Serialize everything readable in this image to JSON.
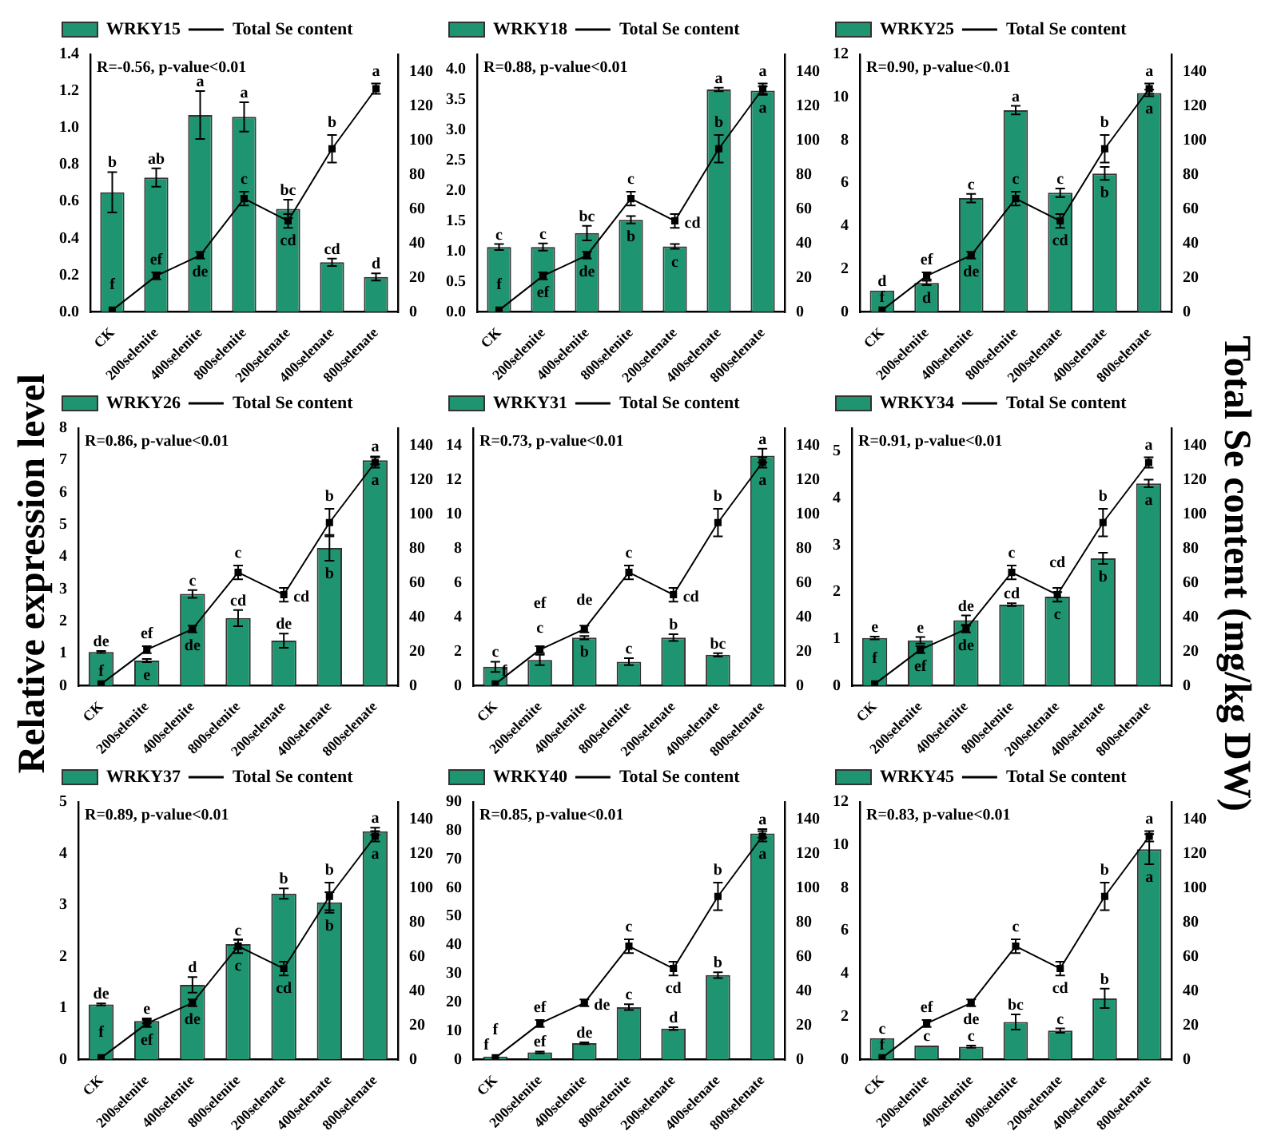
{
  "chart_data": [
    {
      "type": "bar",
      "categories": [
        "CK",
        "200selenite",
        "400selenite",
        "800selenite",
        "200selenate",
        "400selenate",
        "800selenate"
      ],
      "legend": "top left",
      "marker": "square",
      "annotations": [
        "R=-0.56, p-value<0.01"
      ],
      "series": [
        {
          "name": "WRKY15",
          "color": "#1f9470",
          "values": [
            0.65,
            0.73,
            1.07,
            1.06,
            0.56,
            0.27,
            0.19
          ],
          "errors": [
            0.11,
            0.05,
            0.13,
            0.08,
            0.05,
            0.02,
            0.02
          ],
          "value_labels": [
            "b",
            "ab",
            "a",
            "a",
            "bc",
            "cd",
            "d"
          ]
        },
        {
          "name": "Total Se content",
          "type": "line",
          "axis": "y2",
          "color": "#000000",
          "values": [
            1,
            21,
            33,
            66,
            53,
            95,
            130
          ],
          "errors": [
            null,
            2,
            2,
            4,
            4,
            8,
            3
          ],
          "value_labels": [
            "f",
            "ef",
            "de",
            "c",
            "cd",
            "b",
            "a"
          ]
        }
      ],
      "ylim": [
        0,
        1.4
      ],
      "yticks": [
        {
          "value": 0,
          "label": "0.0"
        },
        {
          "value": 0.2,
          "label": "0.2"
        },
        {
          "value": 0.4,
          "label": "0.4"
        },
        {
          "value": 0.6,
          "label": "0.6"
        },
        {
          "value": 0.8,
          "label": "0.8"
        },
        {
          "value": 1,
          "label": "1.0"
        },
        {
          "value": 1.2,
          "label": "1.2"
        },
        {
          "value": 1.4,
          "label": "1.4"
        }
      ],
      "y2lim": [
        0,
        150
      ],
      "y2ticks": [
        0,
        20,
        40,
        60,
        80,
        100,
        120,
        140
      ]
    },
    {
      "type": "bar",
      "categories": [
        "CK",
        "200selenite",
        "400selenite",
        "800selenite",
        "200selenate",
        "400selenate",
        "800selenate"
      ],
      "legend": "top left",
      "marker": "square",
      "annotations": [
        "R=0.88, p-value<0.01"
      ],
      "series": [
        {
          "name": "WRKY18",
          "color": "#1f9470",
          "values": [
            1.07,
            1.07,
            1.3,
            1.52,
            1.08,
            3.67,
            3.65
          ],
          "errors": [
            0.05,
            0.06,
            0.12,
            0.06,
            0.04,
            0.03,
            0.07
          ],
          "value_labels": [
            "c",
            "c",
            "bc",
            "b",
            "c",
            "a",
            "a"
          ]
        },
        {
          "name": "Total Se content",
          "type": "line",
          "axis": "y2",
          "color": "#000000",
          "values": [
            1,
            21,
            33,
            66,
            53,
            95,
            130
          ],
          "errors": [
            null,
            2,
            2,
            4,
            4,
            8,
            3
          ],
          "value_labels": [
            "f",
            "ef",
            "de",
            "c",
            "cd",
            "b",
            "a"
          ]
        }
      ],
      "ylim": [
        0,
        4.25
      ],
      "yticks": [
        {
          "value": 0,
          "label": "0.0"
        },
        {
          "value": 0.5,
          "label": "0.5"
        },
        {
          "value": 1,
          "label": "1.0"
        },
        {
          "value": 1.5,
          "label": "1.5"
        },
        {
          "value": 2,
          "label": "2.0"
        },
        {
          "value": 2.5,
          "label": "2.5"
        },
        {
          "value": 3,
          "label": "3.0"
        },
        {
          "value": 3.5,
          "label": "3.5"
        },
        {
          "value": 4,
          "label": "4.0"
        }
      ],
      "y2lim": [
        0,
        150
      ],
      "y2ticks": [
        0,
        20,
        40,
        60,
        80,
        100,
        120,
        140
      ]
    },
    {
      "type": "bar",
      "categories": [
        "CK",
        "200selenite",
        "400selenite",
        "800selenite",
        "200selenate",
        "400selenate",
        "800selenate"
      ],
      "legend": "top left",
      "marker": "square",
      "annotations": [
        "R=0.90, p-value<0.01"
      ],
      "series": [
        {
          "name": "WRKY25",
          "color": "#1f9470",
          "values": [
            1,
            1.35,
            5.3,
            9.4,
            5.55,
            6.45,
            10.2
          ],
          "errors": [
            null,
            0.1,
            0.2,
            0.2,
            0.2,
            0.3,
            0.15
          ],
          "value_labels": [
            "d",
            "d",
            "c",
            "a",
            "c",
            "b",
            "a"
          ]
        },
        {
          "name": "Total Se content",
          "type": "line",
          "axis": "y2",
          "color": "#000000",
          "values": [
            1,
            21,
            33,
            66,
            53,
            95,
            130
          ],
          "errors": [
            null,
            2,
            2,
            4,
            4,
            8,
            3
          ],
          "value_labels": [
            "f",
            "ef",
            "de",
            "c",
            "cd",
            "b",
            "a"
          ]
        }
      ],
      "ylim": [
        0,
        12
      ],
      "yticks": [
        0,
        2,
        4,
        6,
        8,
        10,
        12
      ],
      "y2lim": [
        0,
        150
      ],
      "y2ticks": [
        0,
        20,
        40,
        60,
        80,
        100,
        120,
        140
      ]
    },
    {
      "type": "bar",
      "categories": [
        "CK",
        "200selenite",
        "400selenite",
        "800selenite",
        "200selenate",
        "400selenate",
        "800selenate"
      ],
      "ylabel": "Relative expression level",
      "legend": "top left",
      "marker": "square",
      "annotations": [
        "R=0.86, p-value<0.01"
      ],
      "series": [
        {
          "name": "WRKY26",
          "color": "#1f9470",
          "values": [
            1.05,
            0.78,
            2.85,
            2.1,
            1.4,
            4.28,
            7.0
          ],
          "errors": [
            0.03,
            0.05,
            0.12,
            0.25,
            0.22,
            0.4,
            0.12
          ],
          "value_labels": [
            "de",
            "e",
            "c",
            "cd",
            "de",
            "b",
            "a"
          ]
        },
        {
          "name": "Total Se content",
          "type": "line",
          "axis": "y2",
          "color": "#000000",
          "values": [
            1,
            21,
            33,
            66,
            53,
            95,
            130
          ],
          "errors": [
            null,
            2,
            2,
            4,
            4,
            8,
            3
          ],
          "value_labels": [
            "f",
            "ef",
            "de",
            "c",
            "cd",
            "b",
            "a"
          ]
        }
      ],
      "ylim": [
        0,
        8
      ],
      "yticks": [
        0,
        1,
        2,
        3,
        4,
        5,
        6,
        7,
        8
      ],
      "y2lim": [
        0,
        150
      ],
      "y2ticks": [
        0,
        20,
        40,
        60,
        80,
        100,
        120,
        140
      ]
    },
    {
      "type": "bar",
      "categories": [
        "CK",
        "200selenite",
        "400selenite",
        "800selenite",
        "200selenate",
        "400selenate",
        "800selenate"
      ],
      "legend": "top left",
      "marker": "square",
      "annotations": [
        "R=0.73, p-value<0.01"
      ],
      "series": [
        {
          "name": "WRKY31",
          "color": "#1f9470",
          "values": [
            1.1,
            1.5,
            2.8,
            1.4,
            2.8,
            1.8,
            13.4
          ],
          "errors": [
            0.3,
            0.3,
            0.1,
            0.2,
            0.2,
            0.1,
            0.4
          ],
          "value_labels": [
            "c",
            "c",
            "b",
            "c",
            "b",
            "bc",
            "a"
          ]
        },
        {
          "name": "Total Se content",
          "type": "line",
          "axis": "y2",
          "color": "#000000",
          "values": [
            1,
            21,
            33,
            66,
            53,
            95,
            130
          ],
          "errors": [
            null,
            2,
            2,
            4,
            4,
            8,
            3
          ],
          "value_labels": [
            "f",
            "ef",
            "de",
            "c",
            "cd",
            "b",
            "a"
          ]
        }
      ],
      "ylim": [
        0,
        15
      ],
      "yticks": [
        0,
        2,
        4,
        6,
        8,
        10,
        12,
        14
      ],
      "y2lim": [
        0,
        150
      ],
      "y2ticks": [
        0,
        20,
        40,
        60,
        80,
        100,
        120,
        140
      ]
    },
    {
      "type": "bar",
      "categories": [
        "CK",
        "200selenite",
        "400selenite",
        "800selenite",
        "200selenate",
        "400selenate",
        "800selenate"
      ],
      "y2label": "Total Se content (mg/kg DW)",
      "legend": "top left",
      "marker": "square",
      "annotations": [
        "R=0.91, p-value<0.01"
      ],
      "series": [
        {
          "name": "WRKY34",
          "color": "#1f9470",
          "values": [
            1.02,
            0.97,
            1.4,
            1.73,
            1.9,
            2.72,
            4.32
          ],
          "errors": [
            0.03,
            0.07,
            0.1,
            0.03,
            0.1,
            0.12,
            0.08
          ],
          "value_labels": [
            "e",
            "e",
            "de",
            "cd",
            "c",
            "b",
            "a"
          ]
        },
        {
          "name": "Total Se content",
          "type": "line",
          "axis": "y2",
          "color": "#000000",
          "values": [
            1,
            21,
            33,
            66,
            53,
            95,
            130
          ],
          "errors": [
            null,
            2,
            2,
            4,
            4,
            8,
            3
          ],
          "value_labels": [
            "f",
            "ef",
            "de",
            "c",
            "cd",
            "b",
            "a"
          ]
        }
      ],
      "ylim": [
        0,
        5.5
      ],
      "yticks": [
        0,
        1,
        2,
        3,
        4,
        5
      ],
      "y2lim": [
        0,
        150
      ],
      "y2ticks": [
        0,
        20,
        40,
        60,
        80,
        100,
        120,
        140
      ]
    },
    {
      "type": "bar",
      "categories": [
        "CK",
        "200selenite",
        "400selenite",
        "800selenite",
        "200selenate",
        "400selenate",
        "800selenate"
      ],
      "legend": "top left",
      "marker": "square",
      "annotations": [
        "R=0.89, p-value<0.01"
      ],
      "series": [
        {
          "name": "WRKY37",
          "color": "#1f9470",
          "values": [
            1.07,
            0.75,
            1.45,
            2.24,
            3.22,
            3.05,
            4.43
          ],
          "errors": [
            0.02,
            0.05,
            0.15,
            0.08,
            0.1,
            0.2,
            0.07
          ],
          "value_labels": [
            "de",
            "e",
            "d",
            "c",
            "b",
            "b",
            "a"
          ]
        },
        {
          "name": "Total Se content",
          "type": "line",
          "axis": "y2",
          "color": "#000000",
          "values": [
            1,
            21,
            33,
            66,
            53,
            95,
            130
          ],
          "errors": [
            null,
            2,
            2,
            4,
            4,
            8,
            3
          ],
          "value_labels": [
            "f",
            "ef",
            "de",
            "c",
            "cd",
            "b",
            "a"
          ]
        }
      ],
      "ylim": [
        0,
        5
      ],
      "yticks": [
        0,
        1,
        2,
        3,
        4,
        5
      ],
      "y2lim": [
        0,
        150
      ],
      "y2ticks": [
        0,
        20,
        40,
        60,
        80,
        100,
        120,
        140
      ]
    },
    {
      "type": "bar",
      "categories": [
        "CK",
        "200selenite",
        "400selenite",
        "800selenite",
        "200selenate",
        "400selenate",
        "800selenate"
      ],
      "legend": "top left",
      "marker": "square",
      "annotations": [
        "R=0.85, p-value<0.01"
      ],
      "series": [
        {
          "name": "WRKY40",
          "color": "#1f9470",
          "values": [
            1,
            2.5,
            5.7,
            18.3,
            10.8,
            29.5,
            79
          ],
          "errors": [
            null,
            0.3,
            0.3,
            1,
            0.5,
            1,
            1.5
          ],
          "value_labels": [
            "f",
            "ef",
            "de",
            "c",
            "d",
            "b",
            "a"
          ]
        },
        {
          "name": "Total Se content",
          "type": "line",
          "axis": "y2",
          "color": "#000000",
          "values": [
            1,
            21,
            33,
            66,
            53,
            95,
            130
          ],
          "errors": [
            null,
            2,
            2,
            4,
            4,
            8,
            3
          ],
          "value_labels": [
            "f",
            "ef",
            "de",
            "c",
            "cd",
            "b",
            "a"
          ]
        }
      ],
      "ylim": [
        0,
        90
      ],
      "yticks": [
        0,
        10,
        20,
        30,
        40,
        50,
        60,
        70,
        80,
        90
      ],
      "y2lim": [
        0,
        150
      ],
      "y2ticks": [
        0,
        20,
        40,
        60,
        80,
        100,
        120,
        140
      ]
    },
    {
      "type": "bar",
      "categories": [
        "CK",
        "200selenite",
        "400selenite",
        "800selenite",
        "200selenate",
        "400selenate",
        "800selenate"
      ],
      "legend": "top left",
      "marker": "square",
      "annotations": [
        "R=0.83, p-value<0.01"
      ],
      "series": [
        {
          "name": "WRKY45",
          "color": "#1f9470",
          "values": [
            1,
            0.65,
            0.6,
            1.75,
            1.35,
            2.85,
            9.8
          ],
          "errors": [
            null,
            null,
            0.05,
            0.35,
            0.1,
            0.45,
            0.7
          ],
          "value_labels": [
            "c",
            "c",
            "c",
            "bc",
            "c",
            "b",
            "a"
          ]
        },
        {
          "name": "Total Se content",
          "type": "line",
          "axis": "y2",
          "color": "#000000",
          "values": [
            1,
            21,
            33,
            66,
            53,
            95,
            130
          ],
          "errors": [
            null,
            2,
            2,
            4,
            4,
            8,
            3
          ],
          "value_labels": [
            "f",
            "ef",
            "de",
            "c",
            "cd",
            "b",
            "a"
          ]
        }
      ],
      "ylim": [
        0,
        12
      ],
      "yticks": [
        0,
        2,
        4,
        6,
        8,
        10,
        12
      ],
      "y2lim": [
        0,
        150
      ],
      "y2ticks": [
        0,
        20,
        40,
        60,
        80,
        100,
        120,
        140
      ]
    }
  ]
}
